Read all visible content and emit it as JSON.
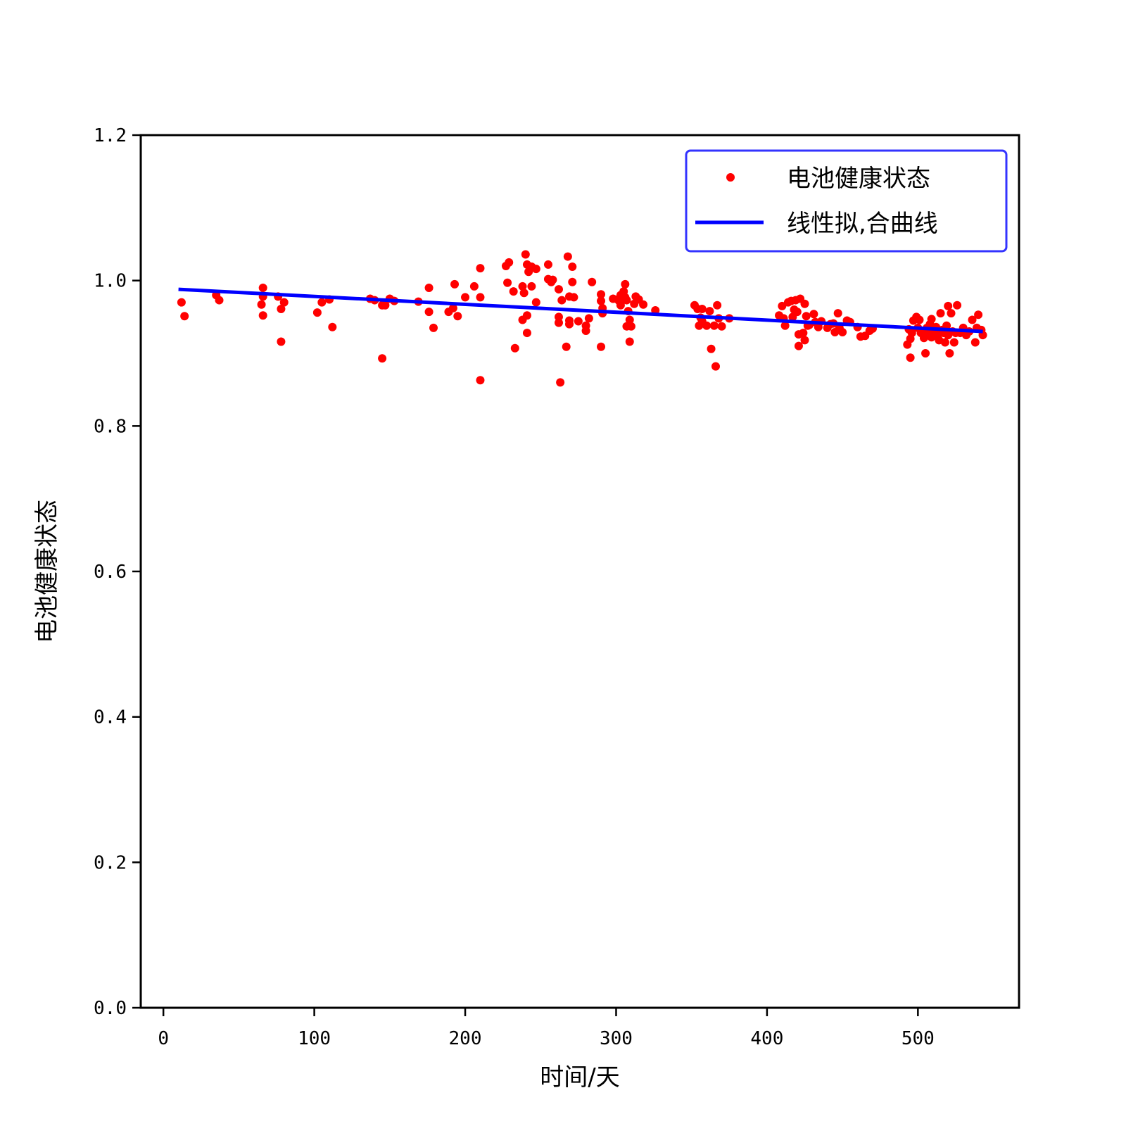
{
  "chart_data": {
    "type": "scatter",
    "xlabel": "时间/天",
    "ylabel": "电池健康状态",
    "xlim": [
      -15,
      567
    ],
    "ylim": [
      0.0,
      1.2
    ],
    "xticks": [
      0,
      100,
      200,
      300,
      400,
      500
    ],
    "yticks": [
      0.0,
      0.2,
      0.4,
      0.6,
      0.8,
      1.0,
      1.2
    ],
    "xtick_labels": [
      "0",
      "100",
      "200",
      "300",
      "400",
      "500"
    ],
    "ytick_labels": [
      "0.0",
      "0.2",
      "0.4",
      "0.6",
      "0.8",
      "1.0",
      "1.2"
    ],
    "grid": false,
    "legend": {
      "position": "top-right",
      "border_color": "#3333ff",
      "entries": [
        {
          "label": "电池健康状态",
          "marker": "dot",
          "color": "#ff0000"
        },
        {
          "label": "线性拟,合曲线",
          "marker": "line",
          "color": "#0000ff"
        }
      ]
    },
    "series": [
      {
        "kind": "scatter",
        "color": "#ff0000",
        "points": [
          [
            12,
            0.97
          ],
          [
            14,
            0.951
          ],
          [
            35,
            0.98
          ],
          [
            37,
            0.973
          ],
          [
            65,
            0.967
          ],
          [
            66,
            0.99
          ],
          [
            66,
            0.978
          ],
          [
            66,
            0.952
          ],
          [
            76,
            0.978
          ],
          [
            78,
            0.961
          ],
          [
            78,
            0.916
          ],
          [
            80,
            0.97
          ],
          [
            102,
            0.956
          ],
          [
            105,
            0.97
          ],
          [
            110,
            0.974
          ],
          [
            112,
            0.936
          ],
          [
            137,
            0.975
          ],
          [
            140,
            0.973
          ],
          [
            145,
            0.966
          ],
          [
            145,
            0.893
          ],
          [
            147,
            0.966
          ],
          [
            150,
            0.975
          ],
          [
            153,
            0.972
          ],
          [
            169,
            0.971
          ],
          [
            176,
            0.99
          ],
          [
            176,
            0.957
          ],
          [
            179,
            0.935
          ],
          [
            189,
            0.957
          ],
          [
            192,
            0.962
          ],
          [
            193,
            0.995
          ],
          [
            195,
            0.951
          ],
          [
            200,
            0.977
          ],
          [
            206,
            0.992
          ],
          [
            210,
            0.977
          ],
          [
            210,
            1.017
          ],
          [
            210,
            0.863
          ],
          [
            227,
            1.02
          ],
          [
            228,
            0.997
          ],
          [
            229,
            1.025
          ],
          [
            232,
            0.985
          ],
          [
            233,
            0.907
          ],
          [
            238,
            0.992
          ],
          [
            238,
            0.946
          ],
          [
            239,
            0.983
          ],
          [
            240,
            1.036
          ],
          [
            241,
            1.022
          ],
          [
            241,
            0.952
          ],
          [
            241,
            0.928
          ],
          [
            242,
            1.012
          ],
          [
            244,
            1.019
          ],
          [
            244,
            0.992
          ],
          [
            247,
            1.016
          ],
          [
            247,
            0.97
          ],
          [
            255,
            1.022
          ],
          [
            255,
            1.002
          ],
          [
            257,
            0.998
          ],
          [
            258,
            1.001
          ],
          [
            262,
            0.988
          ],
          [
            262,
            0.95
          ],
          [
            262,
            0.942
          ],
          [
            263,
            0.86
          ],
          [
            264,
            0.973
          ],
          [
            267,
            0.909
          ],
          [
            268,
            1.033
          ],
          [
            269,
            0.978
          ],
          [
            269,
            0.945
          ],
          [
            269,
            0.94
          ],
          [
            271,
            1.019
          ],
          [
            271,
            0.998
          ],
          [
            272,
            0.977
          ],
          [
            275,
            0.944
          ],
          [
            280,
            0.938
          ],
          [
            280,
            0.931
          ],
          [
            282,
            0.948
          ],
          [
            284,
            0.998
          ],
          [
            290,
            0.981
          ],
          [
            290,
            0.972
          ],
          [
            290,
            0.909
          ],
          [
            291,
            0.962
          ],
          [
            291,
            0.955
          ],
          [
            298,
            0.975
          ],
          [
            301,
            0.974
          ],
          [
            302,
            0.972
          ],
          [
            303,
            0.98
          ],
          [
            303,
            0.966
          ],
          [
            305,
            0.985
          ],
          [
            306,
            0.995
          ],
          [
            306,
            0.977
          ],
          [
            307,
            0.973
          ],
          [
            307,
            0.937
          ],
          [
            308,
            0.958
          ],
          [
            309,
            0.946
          ],
          [
            309,
            0.916
          ],
          [
            310,
            0.937
          ],
          [
            312,
            0.968
          ],
          [
            313,
            0.978
          ],
          [
            315,
            0.974
          ],
          [
            318,
            0.967
          ],
          [
            326,
            0.959
          ],
          [
            352,
            0.966
          ],
          [
            354,
            0.961
          ],
          [
            355,
            0.938
          ],
          [
            356,
            0.949
          ],
          [
            357,
            0.961
          ],
          [
            357,
            0.944
          ],
          [
            360,
            0.938
          ],
          [
            362,
            0.958
          ],
          [
            363,
            0.906
          ],
          [
            365,
            0.938
          ],
          [
            366,
            0.882
          ],
          [
            367,
            0.966
          ],
          [
            368,
            0.948
          ],
          [
            370,
            0.937
          ],
          [
            375,
            0.948
          ],
          [
            408,
            0.952
          ],
          [
            410,
            0.965
          ],
          [
            411,
            0.948
          ],
          [
            412,
            0.938
          ],
          [
            414,
            0.97
          ],
          [
            416,
            0.972
          ],
          [
            417,
            0.95
          ],
          [
            418,
            0.96
          ],
          [
            419,
            0.973
          ],
          [
            420,
            0.957
          ],
          [
            421,
            0.926
          ],
          [
            421,
            0.91
          ],
          [
            422,
            0.975
          ],
          [
            424,
            0.928
          ],
          [
            425,
            0.968
          ],
          [
            425,
            0.918
          ],
          [
            426,
            0.951
          ],
          [
            427,
            0.938
          ],
          [
            428,
            0.939
          ],
          [
            431,
            0.954
          ],
          [
            432,
            0.943
          ],
          [
            434,
            0.936
          ],
          [
            436,
            0.944
          ],
          [
            440,
            0.935
          ],
          [
            442,
            0.94
          ],
          [
            444,
            0.941
          ],
          [
            445,
            0.929
          ],
          [
            447,
            0.955
          ],
          [
            448,
            0.935
          ],
          [
            450,
            0.929
          ],
          [
            453,
            0.945
          ],
          [
            455,
            0.943
          ],
          [
            460,
            0.936
          ],
          [
            462,
            0.923
          ],
          [
            465,
            0.924
          ],
          [
            468,
            0.931
          ],
          [
            470,
            0.934
          ],
          [
            493,
            0.912
          ],
          [
            494,
            0.933
          ],
          [
            495,
            0.894
          ],
          [
            495,
            0.92
          ],
          [
            496,
            0.928
          ],
          [
            497,
            0.945
          ],
          [
            499,
            0.95
          ],
          [
            500,
            0.935
          ],
          [
            501,
            0.946
          ],
          [
            502,
            0.928
          ],
          [
            504,
            0.921
          ],
          [
            505,
            0.9
          ],
          [
            506,
            0.935
          ],
          [
            507,
            0.928
          ],
          [
            508,
            0.94
          ],
          [
            509,
            0.947
          ],
          [
            509,
            0.922
          ],
          [
            510,
            0.933
          ],
          [
            511,
            0.928
          ],
          [
            512,
            0.936
          ],
          [
            513,
            0.925
          ],
          [
            514,
            0.918
          ],
          [
            515,
            0.955
          ],
          [
            516,
            0.932
          ],
          [
            517,
            0.928
          ],
          [
            518,
            0.915
          ],
          [
            519,
            0.938
          ],
          [
            520,
            0.925
          ],
          [
            520,
            0.965
          ],
          [
            521,
            0.9
          ],
          [
            522,
            0.955
          ],
          [
            523,
            0.93
          ],
          [
            524,
            0.915
          ],
          [
            525,
            0.928
          ],
          [
            526,
            0.966
          ],
          [
            528,
            0.928
          ],
          [
            530,
            0.935
          ],
          [
            532,
            0.925
          ],
          [
            534,
            0.93
          ],
          [
            536,
            0.946
          ],
          [
            538,
            0.915
          ],
          [
            539,
            0.935
          ],
          [
            540,
            0.953
          ],
          [
            542,
            0.932
          ],
          [
            543,
            0.925
          ]
        ]
      },
      {
        "kind": "line",
        "color": "#0000ff",
        "x": [
          10,
          543
        ],
        "y": [
          0.988,
          0.93
        ]
      }
    ]
  }
}
